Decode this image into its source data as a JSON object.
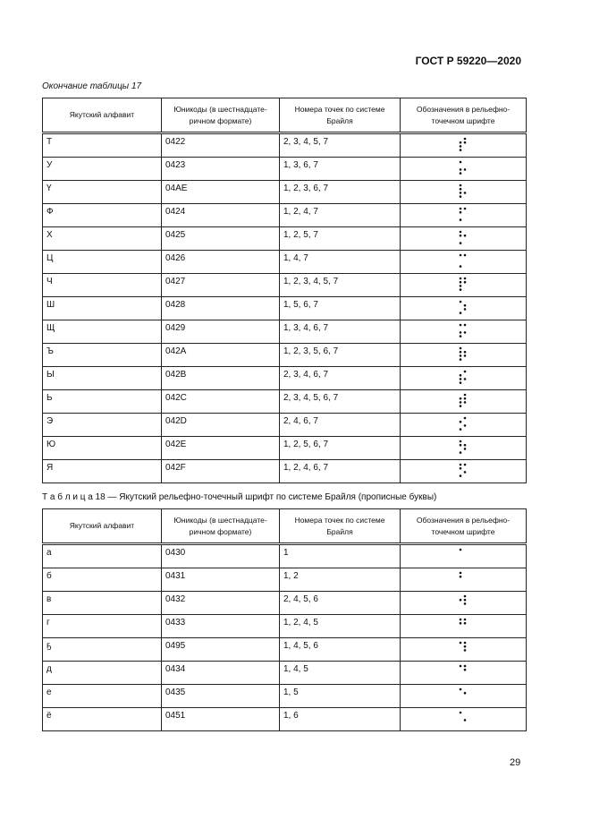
{
  "header": {
    "standard": "ГОСТ Р 59220—2020"
  },
  "table17": {
    "caption": "Окончание таблицы 17",
    "columns": [
      "Якутский алфавит",
      "Юникоды (в шестнадцате-ричном формате)",
      "Номера точек по системе Брайля",
      "Обозначения в рельефно-точечном шрифте"
    ],
    "rows": [
      {
        "letter": "Т",
        "code": "0422",
        "dots": "2, 3, 4, 5, 7"
      },
      {
        "letter": "У",
        "code": "0423",
        "dots": "1, 3, 6, 7"
      },
      {
        "letter": "Ү",
        "code": "04AE",
        "dots": "1, 2, 3, 6, 7"
      },
      {
        "letter": "Ф",
        "code": "0424",
        "dots": "1, 2, 4, 7"
      },
      {
        "letter": "Х",
        "code": "0425",
        "dots": "1, 2, 5, 7"
      },
      {
        "letter": "Ц",
        "code": "0426",
        "dots": "1, 4, 7"
      },
      {
        "letter": "Ч",
        "code": "0427",
        "dots": "1, 2, 3, 4, 5, 7"
      },
      {
        "letter": "Ш",
        "code": "0428",
        "dots": "1, 5, 6, 7"
      },
      {
        "letter": "Щ",
        "code": "0429",
        "dots": "1, 3, 4, 6, 7"
      },
      {
        "letter": "Ъ",
        "code": "042A",
        "dots": "1, 2, 3, 5, 6, 7"
      },
      {
        "letter": "Ы",
        "code": "042B",
        "dots": "2, 3, 4, 6, 7"
      },
      {
        "letter": "Ь",
        "code": "042C",
        "dots": "2, 3, 4, 5, 6, 7"
      },
      {
        "letter": "Э",
        "code": "042D",
        "dots": "2, 4, 6, 7"
      },
      {
        "letter": "Ю",
        "code": "042E",
        "dots": "1, 2, 5, 6, 7"
      },
      {
        "letter": "Я",
        "code": "042F",
        "dots": "1, 2, 4, 6, 7"
      }
    ]
  },
  "table18": {
    "caption": "Т а б л и ц а  18 — Якутский рельефно-точечный шрифт по системе Брайля (прописные буквы)",
    "columns": [
      "Якутский алфавит",
      "Юникоды (в шестнадцате-ричном формате)",
      "Номера точек по системе Брайля",
      "Обозначения в рельефно-точечном шрифте"
    ],
    "rows": [
      {
        "letter": "а",
        "code": "0430",
        "dots": "1"
      },
      {
        "letter": "б",
        "code": "0431",
        "dots": "1, 2"
      },
      {
        "letter": "в",
        "code": "0432",
        "dots": "2, 4, 5, 6"
      },
      {
        "letter": "г",
        "code": "0433",
        "dots": "1, 2, 4, 5"
      },
      {
        "letter": "ҕ",
        "code": "0495",
        "dots": "1, 4, 5, 6"
      },
      {
        "letter": "д",
        "code": "0434",
        "dots": "1, 4, 5"
      },
      {
        "letter": "е",
        "code": "0435",
        "dots": "1, 5"
      },
      {
        "letter": "ё",
        "code": "0451",
        "dots": "1, 6"
      }
    ]
  },
  "footer": {
    "page_number": "29"
  }
}
